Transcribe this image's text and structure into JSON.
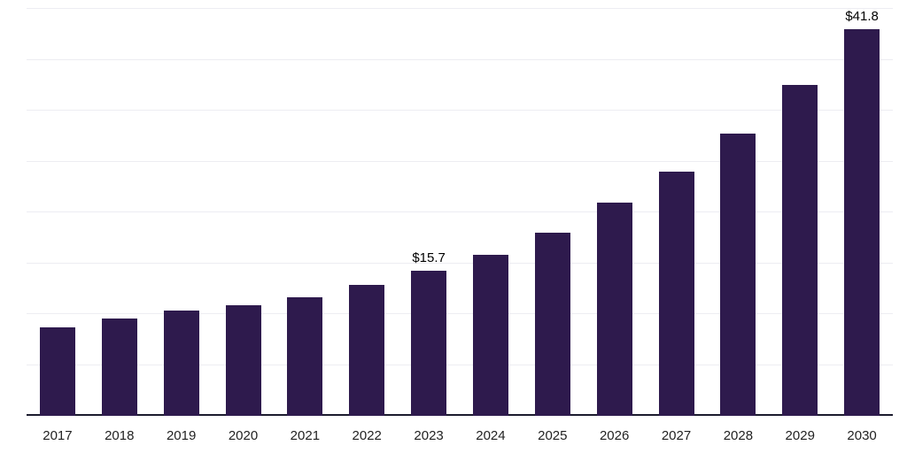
{
  "chart_data": {
    "type": "bar",
    "title": "",
    "xlabel": "",
    "ylabel": "",
    "categories": [
      "2017",
      "2018",
      "2019",
      "2020",
      "2021",
      "2022",
      "2023",
      "2024",
      "2025",
      "2026",
      "2027",
      "2028",
      "2029",
      "2030"
    ],
    "values": [
      9.6,
      10.5,
      11.4,
      12.0,
      12.8,
      14.2,
      15.7,
      17.4,
      19.8,
      23.1,
      26.4,
      30.5,
      35.8,
      41.8
    ],
    "data_labels": {
      "2023": "$15.7",
      "2030": "$41.8"
    },
    "ylim": [
      0,
      44
    ],
    "gridlines": 8,
    "grid": "horizontal",
    "legend": "none",
    "bar_color": "#2e1a4d",
    "axis_line_color": "#1c1c2e",
    "gridline_color": "#ededf2",
    "data_label_color": "#000000",
    "tick_label_color": "#222222"
  }
}
